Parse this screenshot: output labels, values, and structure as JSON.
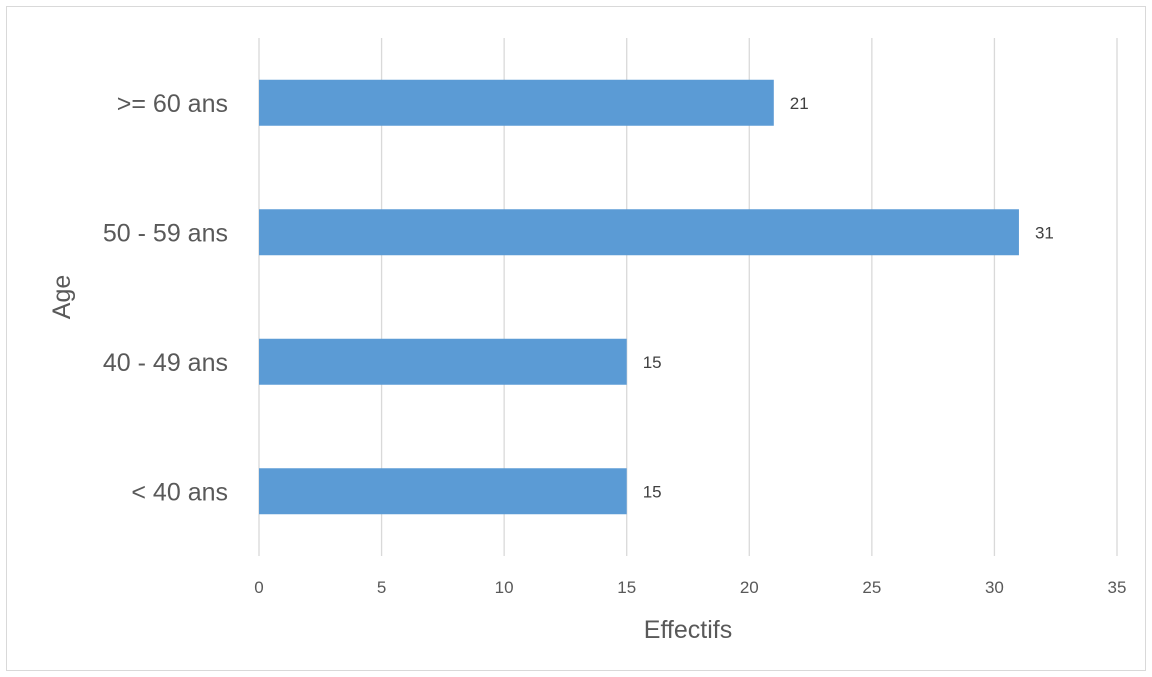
{
  "chart_data": {
    "type": "bar",
    "orientation": "horizontal",
    "categories": [
      "< 40 ans",
      "40 - 49 ans",
      "50 - 59 ans",
      ">= 60 ans"
    ],
    "values": [
      15,
      15,
      31,
      21
    ],
    "data_labels": [
      "15",
      "15",
      "31",
      "21"
    ],
    "xlabel": "Effectifs",
    "ylabel": "Age",
    "xlim": [
      0,
      35
    ],
    "x_ticks": [
      "0",
      "5",
      "10",
      "15",
      "20",
      "25",
      "30",
      "35"
    ],
    "grid": "vertical",
    "legend": "none",
    "bar_color": "#5b9bd5",
    "grid_color": "#d9d9d9"
  }
}
